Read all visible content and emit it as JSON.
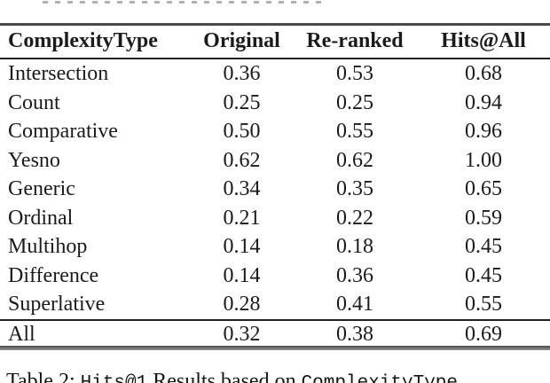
{
  "page": {
    "caption": {
      "prefix": "Table 2: ",
      "metric_code": "Hits@1",
      "middle": " Results based on ",
      "type_code": "ComplexityType"
    },
    "table": {
      "headers": [
        "ComplexityType",
        "Original",
        "Re-ranked",
        "Hits@All"
      ],
      "rows": [
        {
          "label": "Intersection",
          "original": "0.36",
          "reranked": "0.53",
          "hits_at_all": "0.68"
        },
        {
          "label": "Count",
          "original": "0.25",
          "reranked": "0.25",
          "hits_at_all": "0.94"
        },
        {
          "label": "Comparative",
          "original": "0.50",
          "reranked": "0.55",
          "hits_at_all": "0.96"
        },
        {
          "label": "Yesno",
          "original": "0.62",
          "reranked": "0.62",
          "hits_at_all": "1.00"
        },
        {
          "label": "Generic",
          "original": "0.34",
          "reranked": "0.35",
          "hits_at_all": "0.65"
        },
        {
          "label": "Ordinal",
          "original": "0.21",
          "reranked": "0.22",
          "hits_at_all": "0.59"
        },
        {
          "label": "Multihop",
          "original": "0.14",
          "reranked": "0.18",
          "hits_at_all": "0.45"
        },
        {
          "label": "Difference",
          "original": "0.14",
          "reranked": "0.36",
          "hits_at_all": "0.45"
        },
        {
          "label": "Superlative",
          "original": "0.28",
          "reranked": "0.41",
          "hits_at_all": "0.55"
        }
      ],
      "summary_row": {
        "label": "All",
        "original": "0.32",
        "reranked": "0.38",
        "hits_at_all": "0.69"
      }
    }
  }
}
